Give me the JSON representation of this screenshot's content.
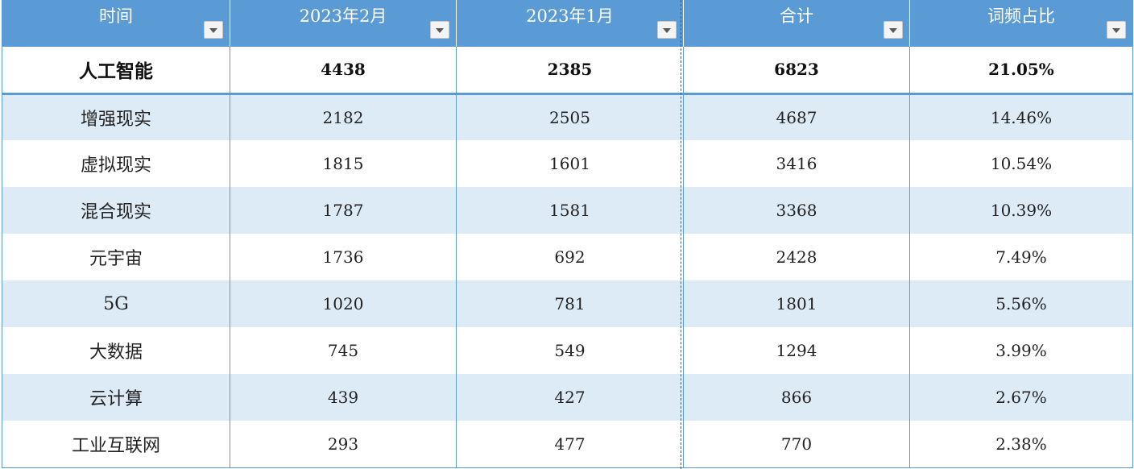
{
  "table": {
    "headers": [
      "时间",
      "2023年2月",
      "2023年1月",
      "合计",
      "词频占比"
    ],
    "rows": [
      [
        "人工智能",
        "4438",
        "2385",
        "6823",
        "21.05%"
      ],
      [
        "增强现实",
        "2182",
        "2505",
        "4687",
        "14.46%"
      ],
      [
        "虚拟现实",
        "1815",
        "1601",
        "3416",
        "10.54%"
      ],
      [
        "混合现实",
        "1787",
        "1581",
        "3368",
        "10.39%"
      ],
      [
        "元宇宙",
        "1736",
        "692",
        "2428",
        "7.49%"
      ],
      [
        "5G",
        "1020",
        "781",
        "1801",
        "5.56%"
      ],
      [
        "大数据",
        "745",
        "549",
        "1294",
        "3.99%"
      ],
      [
        "云计算",
        "439",
        "427",
        "866",
        "2.67%"
      ],
      [
        "工业互联网",
        "293",
        "477",
        "770",
        "2.38%"
      ]
    ]
  },
  "colors": {
    "header_bg": "#5b9bd5",
    "band_bg": "#ddebf7",
    "border": "#5b9bd5"
  },
  "icons": {
    "filter": "filter-dropdown-icon"
  }
}
